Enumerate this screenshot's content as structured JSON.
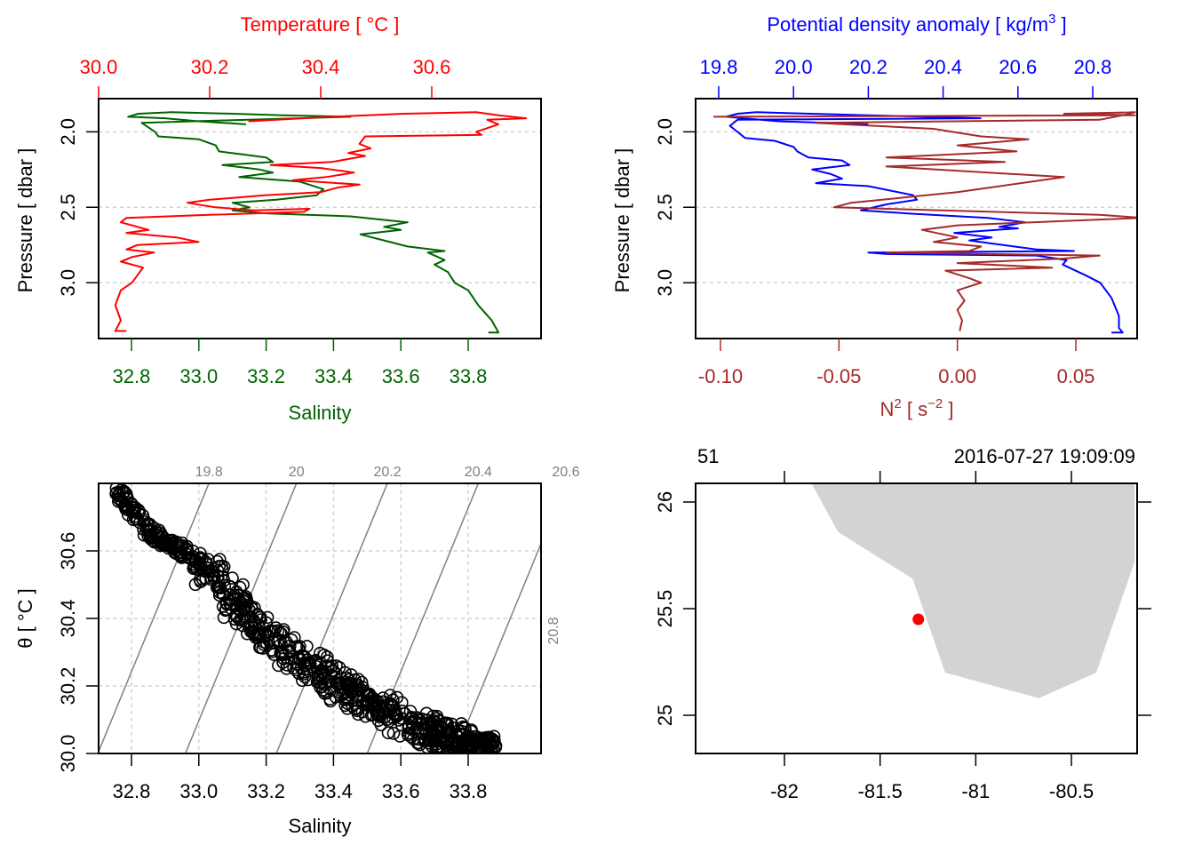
{
  "colors": {
    "temperature": "#ff0000",
    "salinity": "#006400",
    "density": "#0000ff",
    "n2": "#a52a2a",
    "grid": "#d3d3d3",
    "isopycnal": "#808080",
    "land": "#d3d3d3",
    "station": "#ff0000",
    "axis": "#000000"
  },
  "chart_data": [
    {
      "id": "temperature-salinity-profile",
      "type": "line",
      "title": "Temperature [ °C ]",
      "xlabel_top": "Temperature [ °C ]",
      "xlabel_bottom": "Salinity",
      "ylabel": "Pressure [ dbar ]",
      "y_reversed": true,
      "ylim": [
        1.78,
        3.37
      ],
      "top_axis": {
        "label": "Temperature [ °C ]",
        "range": [
          30.0,
          0.7955
        ],
        "lim": [
          30.0,
          30.7955
        ],
        "ticks": [
          "30.0",
          "30.2",
          "30.4",
          "30.6"
        ],
        "tick_values": [
          30.0,
          30.2,
          30.4,
          30.6
        ]
      },
      "bottom_axis": {
        "label": "Salinity",
        "lim": [
          32.702,
          34.016
        ],
        "ticks": [
          "32.8",
          "33.0",
          "33.2",
          "33.4",
          "33.6",
          "33.8"
        ],
        "tick_values": [
          32.8,
          33.0,
          33.2,
          33.4,
          33.6,
          33.8
        ]
      },
      "left_axis": {
        "ticks": [
          "2.0",
          "2.5",
          "3.0"
        ],
        "tick_values": [
          2.0,
          2.5,
          3.0
        ]
      },
      "grid": "horizontal dotted at y ticks",
      "series": [
        {
          "name": "Temperature",
          "axis": "top",
          "points": [
            [
              30.27,
              1.93
            ],
            [
              30.42,
              1.9
            ],
            [
              30.55,
              1.88
            ],
            [
              30.68,
              1.87
            ],
            [
              30.72,
              1.89
            ],
            [
              30.77,
              1.91
            ],
            [
              30.7,
              1.92
            ],
            [
              30.72,
              1.95
            ],
            [
              30.68,
              2.0
            ],
            [
              30.69,
              2.02
            ],
            [
              30.48,
              2.03
            ],
            [
              30.47,
              2.08
            ],
            [
              30.49,
              2.11
            ],
            [
              30.45,
              2.14
            ],
            [
              30.48,
              2.16
            ],
            [
              30.42,
              2.2
            ],
            [
              30.31,
              2.22
            ],
            [
              30.4,
              2.24
            ],
            [
              30.46,
              2.27
            ],
            [
              30.41,
              2.3
            ],
            [
              30.35,
              2.32
            ],
            [
              30.47,
              2.35
            ],
            [
              30.43,
              2.37
            ],
            [
              30.4,
              2.4
            ],
            [
              30.3,
              2.42
            ],
            [
              30.2,
              2.45
            ],
            [
              30.16,
              2.47
            ],
            [
              30.21,
              2.5
            ],
            [
              30.28,
              2.52
            ],
            [
              30.38,
              2.51
            ],
            [
              30.37,
              2.53
            ],
            [
              30.2,
              2.55
            ],
            [
              30.05,
              2.57
            ],
            [
              30.04,
              2.6
            ],
            [
              30.09,
              2.65
            ],
            [
              30.05,
              2.67
            ],
            [
              30.14,
              2.7
            ],
            [
              30.18,
              2.73
            ],
            [
              30.07,
              2.75
            ],
            [
              30.05,
              2.78
            ],
            [
              30.1,
              2.8
            ],
            [
              30.06,
              2.83
            ],
            [
              30.04,
              2.86
            ],
            [
              30.08,
              2.9
            ],
            [
              30.07,
              2.95
            ],
            [
              30.06,
              3.0
            ],
            [
              30.04,
              3.05
            ],
            [
              30.03,
              3.15
            ],
            [
              30.04,
              3.25
            ],
            [
              30.03,
              3.32
            ],
            [
              30.05,
              3.32
            ]
          ]
        },
        {
          "name": "Salinity",
          "axis": "bottom",
          "points": [
            [
              33.14,
              1.95
            ],
            [
              33.0,
              1.93
            ],
            [
              32.9,
              1.91
            ],
            [
              32.79,
              1.9
            ],
            [
              32.82,
              1.88
            ],
            [
              32.92,
              1.87
            ],
            [
              33.1,
              1.88
            ],
            [
              33.25,
              1.89
            ],
            [
              33.45,
              1.9
            ],
            [
              32.83,
              1.94
            ],
            [
              32.87,
              2.0
            ],
            [
              32.88,
              2.03
            ],
            [
              33.0,
              2.05
            ],
            [
              33.05,
              2.09
            ],
            [
              33.06,
              2.13
            ],
            [
              33.13,
              2.15
            ],
            [
              33.2,
              2.17
            ],
            [
              33.22,
              2.2
            ],
            [
              33.07,
              2.22
            ],
            [
              33.18,
              2.25
            ],
            [
              33.22,
              2.27
            ],
            [
              33.12,
              2.3
            ],
            [
              33.3,
              2.33
            ],
            [
              33.37,
              2.38
            ],
            [
              33.35,
              2.42
            ],
            [
              33.23,
              2.45
            ],
            [
              33.1,
              2.47
            ],
            [
              33.15,
              2.5
            ],
            [
              33.1,
              2.52
            ],
            [
              33.2,
              2.54
            ],
            [
              33.45,
              2.56
            ],
            [
              33.62,
              2.6
            ],
            [
              33.55,
              2.63
            ],
            [
              33.6,
              2.65
            ],
            [
              33.48,
              2.68
            ],
            [
              33.55,
              2.72
            ],
            [
              33.62,
              2.76
            ],
            [
              33.73,
              2.79
            ],
            [
              33.68,
              2.8
            ],
            [
              33.7,
              2.82
            ],
            [
              33.73,
              2.85
            ],
            [
              33.7,
              2.88
            ],
            [
              33.74,
              2.93
            ],
            [
              33.76,
              3.0
            ],
            [
              33.8,
              3.05
            ],
            [
              33.83,
              3.15
            ],
            [
              33.87,
              3.25
            ],
            [
              33.89,
              3.33
            ],
            [
              33.86,
              3.33
            ]
          ]
        }
      ]
    },
    {
      "id": "density-n2-profile",
      "type": "line",
      "xlabel_top": "Potential density anomaly [ kg/m³ ]",
      "xlabel_bottom": "N² [ s⁻² ]",
      "ylabel": "Pressure [ dbar ]",
      "y_reversed": true,
      "ylim": [
        1.78,
        3.37
      ],
      "top_axis": {
        "label": "Potential density anomaly [ kg/m³ ]",
        "lim": [
          19.738,
          20.919
        ],
        "ticks": [
          "19.8",
          "20.0",
          "20.2",
          "20.4",
          "20.6",
          "20.8"
        ],
        "tick_values": [
          19.8,
          20.0,
          20.2,
          20.4,
          20.6,
          20.8
        ]
      },
      "bottom_axis": {
        "label": "N² [ s⁻² ]",
        "lim": [
          -0.1105,
          0.0759
        ],
        "ticks": [
          "-0.10",
          "-0.05",
          "0.00",
          "0.05"
        ],
        "tick_values": [
          -0.1,
          -0.05,
          0.0,
          0.05
        ]
      },
      "left_axis": {
        "ticks": [
          "2.0",
          "2.5",
          "3.0"
        ],
        "tick_values": [
          2.0,
          2.5,
          3.0
        ]
      },
      "grid": "horizontal dotted at y ticks",
      "series": [
        {
          "name": "Potential density anomaly",
          "axis": "top",
          "points": [
            [
              20.2,
              1.95
            ],
            [
              19.96,
              1.93
            ],
            [
              19.82,
              1.9
            ],
            [
              19.85,
              1.88
            ],
            [
              19.9,
              1.87
            ],
            [
              20.2,
              1.89
            ],
            [
              20.5,
              1.91
            ],
            [
              19.85,
              1.92
            ],
            [
              19.83,
              1.96
            ],
            [
              19.85,
              2.0
            ],
            [
              19.87,
              2.04
            ],
            [
              19.95,
              2.06
            ],
            [
              20.0,
              2.1
            ],
            [
              20.01,
              2.13
            ],
            [
              20.04,
              2.17
            ],
            [
              20.13,
              2.19
            ],
            [
              20.15,
              2.22
            ],
            [
              20.05,
              2.25
            ],
            [
              20.1,
              2.28
            ],
            [
              20.13,
              2.31
            ],
            [
              20.06,
              2.34
            ],
            [
              20.2,
              2.36
            ],
            [
              20.32,
              2.42
            ],
            [
              20.33,
              2.45
            ],
            [
              20.25,
              2.48
            ],
            [
              20.18,
              2.52
            ],
            [
              20.3,
              2.54
            ],
            [
              20.52,
              2.57
            ],
            [
              20.62,
              2.6
            ],
            [
              20.55,
              2.63
            ],
            [
              20.6,
              2.64
            ],
            [
              20.43,
              2.67
            ],
            [
              20.53,
              2.7
            ],
            [
              20.47,
              2.72
            ],
            [
              20.65,
              2.78
            ],
            [
              20.75,
              2.79
            ],
            [
              20.2,
              2.8
            ],
            [
              20.25,
              2.81
            ],
            [
              20.65,
              2.82
            ],
            [
              20.73,
              2.85
            ],
            [
              20.72,
              2.88
            ],
            [
              20.78,
              2.95
            ],
            [
              20.82,
              3.0
            ],
            [
              20.85,
              3.1
            ],
            [
              20.87,
              3.22
            ],
            [
              20.87,
              3.3
            ],
            [
              20.88,
              3.33
            ],
            [
              20.85,
              3.33
            ]
          ]
        },
        {
          "name": "N²",
          "axis": "bottom",
          "points": [
            [
              -0.103,
              1.9
            ],
            [
              0.075,
              1.89
            ],
            [
              0.045,
              1.88
            ],
            [
              0.075,
              1.87
            ],
            [
              0.07,
              1.89
            ],
            [
              0.06,
              1.92
            ],
            [
              -0.06,
              1.94
            ],
            [
              -0.01,
              1.98
            ],
            [
              0.01,
              2.03
            ],
            [
              0.03,
              2.05
            ],
            [
              -0.0,
              2.09
            ],
            [
              0.025,
              2.13
            ],
            [
              -0.03,
              2.17
            ],
            [
              0.02,
              2.2
            ],
            [
              -0.03,
              2.23
            ],
            [
              0.045,
              2.3
            ],
            [
              0.0,
              2.4
            ],
            [
              -0.045,
              2.47
            ],
            [
              -0.052,
              2.5
            ],
            [
              0.06,
              2.55
            ],
            [
              0.078,
              2.57
            ],
            [
              0.0,
              2.62
            ],
            [
              -0.015,
              2.65
            ],
            [
              0.0,
              2.7
            ],
            [
              -0.01,
              2.73
            ],
            [
              0.01,
              2.76
            ],
            [
              0.005,
              2.79
            ],
            [
              -0.03,
              2.8
            ],
            [
              0.06,
              2.82
            ],
            [
              0.045,
              2.84
            ],
            [
              0.0,
              2.87
            ],
            [
              0.04,
              2.9
            ],
            [
              -0.005,
              2.92
            ],
            [
              0.005,
              2.97
            ],
            [
              0.01,
              3.0
            ],
            [
              0.0,
              3.05
            ],
            [
              0.003,
              3.12
            ],
            [
              0.0,
              3.18
            ],
            [
              0.002,
              3.25
            ],
            [
              0.001,
              3.32
            ]
          ]
        }
      ]
    },
    {
      "id": "ts-diagram",
      "type": "scatter",
      "xlabel": "Salinity",
      "ylabel": "θ [ °C ]",
      "xlim": [
        32.702,
        34.016
      ],
      "ylim": [
        30.0,
        30.8
      ],
      "x_ticks": [
        "32.8",
        "33.0",
        "33.2",
        "33.4",
        "33.6",
        "33.8"
      ],
      "x_tick_values": [
        32.8,
        33.0,
        33.2,
        33.4,
        33.6,
        33.8
      ],
      "y_ticks": [
        "30.0",
        "30.2",
        "30.4",
        "30.6"
      ],
      "y_tick_values": [
        30.0,
        30.2,
        30.4,
        30.6
      ],
      "grid": "dotted at ticks",
      "isopycnals": {
        "labels": [
          "19.8",
          "20",
          "20.2",
          "20.4",
          "20.6",
          "20.8"
        ],
        "values": [
          19.8,
          20.0,
          20.2,
          20.4,
          20.6,
          20.8
        ],
        "label_placement": "top; 20.8 on right side"
      },
      "point_cloud_trend": [
        [
          32.76,
          30.77
        ],
        [
          32.85,
          30.66
        ],
        [
          32.95,
          30.6
        ],
        [
          33.05,
          30.52
        ],
        [
          33.12,
          30.43
        ],
        [
          33.2,
          30.35
        ],
        [
          33.3,
          30.28
        ],
        [
          33.4,
          30.21
        ],
        [
          33.5,
          30.15
        ],
        [
          33.6,
          30.1
        ],
        [
          33.7,
          30.06
        ],
        [
          33.8,
          30.03
        ],
        [
          33.89,
          30.035
        ]
      ],
      "point_count_approx": 1500
    },
    {
      "id": "station-map",
      "type": "map",
      "top_left_label": "51",
      "top_right_label": "2016-07-27 19:09:09",
      "xlim": [
        -82.47,
        -80.17
      ],
      "ylim": [
        24.82,
        26.09
      ],
      "x_ticks": [
        "-82",
        "-81.5",
        "-81",
        "-80.5"
      ],
      "x_tick_values": [
        -82,
        -81.5,
        -81,
        -80.5
      ],
      "y_ticks": [
        "25",
        "25.5",
        "26"
      ],
      "y_tick_values": [
        25,
        25.5,
        26
      ],
      "station": {
        "lon": -81.3,
        "lat": 25.45
      },
      "land_polygon": [
        [
          -81.86,
          26.09
        ],
        [
          -81.72,
          25.86
        ],
        [
          -81.33,
          25.64
        ],
        [
          -81.16,
          25.2
        ],
        [
          -80.67,
          25.08
        ],
        [
          -80.37,
          25.2
        ],
        [
          -80.17,
          25.72
        ],
        [
          -80.17,
          26.09
        ]
      ]
    }
  ]
}
